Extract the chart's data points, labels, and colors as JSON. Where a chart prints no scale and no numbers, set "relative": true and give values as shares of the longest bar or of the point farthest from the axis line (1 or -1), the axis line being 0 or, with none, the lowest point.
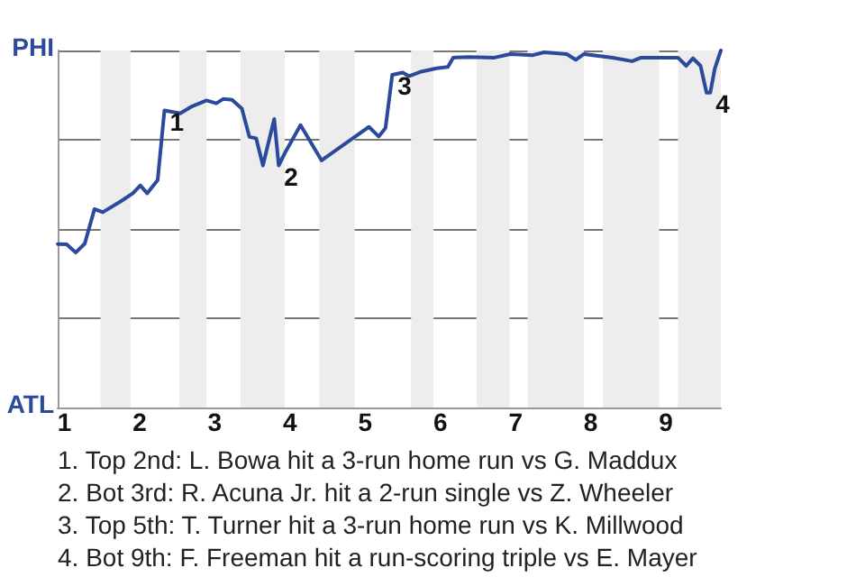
{
  "chart_data": {
    "type": "line",
    "relative": true,
    "x": [
      0.91,
      1.03,
      1.15,
      1.27,
      1.4,
      1.51,
      1.76,
      1.91,
      2.01,
      2.1,
      2.24,
      2.33,
      2.54,
      2.7,
      2.89,
      3.02,
      3.11,
      3.23,
      3.36,
      3.46,
      3.55,
      3.64,
      3.79,
      3.85,
      3.94,
      4.14,
      4.42,
      4.78,
      5.05,
      5.18,
      5.27,
      5.36,
      5.5,
      5.58,
      5.73,
      5.95,
      6.1,
      6.17,
      6.38,
      6.72,
      6.93,
      7.23,
      7.38,
      7.68,
      7.8,
      7.91,
      8.29,
      8.55,
      8.67,
      8.97,
      9.16,
      9.27,
      9.36,
      9.46,
      9.54,
      9.59,
      9.65,
      9.73
    ],
    "series": [
      {
        "color": "#2b4a9c",
        "values": [
          0.458,
          0.457,
          0.434,
          0.459,
          0.556,
          0.547,
          0.579,
          0.6,
          0.622,
          0.6,
          0.637,
          0.832,
          0.824,
          0.844,
          0.86,
          0.852,
          0.864,
          0.862,
          0.837,
          0.758,
          0.754,
          0.678,
          0.808,
          0.678,
          0.716,
          0.791,
          0.692,
          0.746,
          0.786,
          0.759,
          0.783,
          0.932,
          0.938,
          0.928,
          0.94,
          0.95,
          0.954,
          0.98,
          0.982,
          0.98,
          0.99,
          0.987,
          0.995,
          0.99,
          0.974,
          0.99,
          0.98,
          0.97,
          0.98,
          0.98,
          0.98,
          0.957,
          0.978,
          0.957,
          0.882,
          0.882,
          0.949,
          1
        ]
      }
    ],
    "xlim": [
      0.91,
      9.73
    ],
    "xticks": [
      1,
      2,
      3,
      4,
      5,
      6,
      7,
      8,
      9
    ],
    "grid": "y",
    "marker": "none",
    "line_style": "solid",
    "bands": [
      {
        "axis": "x",
        "from": 1.48,
        "to": 1.88,
        "color": "#ededed"
      },
      {
        "axis": "x",
        "from": 2.53,
        "to": 2.89,
        "color": "#ededed"
      },
      {
        "axis": "x",
        "from": 3.34,
        "to": 3.93,
        "color": "#ededed"
      },
      {
        "axis": "x",
        "from": 4.39,
        "to": 4.86,
        "color": "#ededed"
      },
      {
        "axis": "x",
        "from": 5.61,
        "to": 5.91,
        "color": "#ededed"
      },
      {
        "axis": "x",
        "from": 6.48,
        "to": 6.92,
        "color": "#ededed"
      },
      {
        "axis": "x",
        "from": 7.16,
        "to": 7.91,
        "color": "#ededed"
      },
      {
        "axis": "x",
        "from": 8.16,
        "to": 8.91,
        "color": "#ededed"
      },
      {
        "axis": "x",
        "from": 9.16,
        "to": 9.73,
        "color": "#ededed"
      }
    ],
    "annotations": [
      "PHI",
      "ATL",
      {
        "text": "1",
        "x": 2.33,
        "y": 0.832
      },
      {
        "text": "2",
        "x": 3.85,
        "y": 0.678
      },
      {
        "text": "3",
        "x": 5.36,
        "y": 0.932
      },
      {
        "text": "4",
        "x": 9.59,
        "y": 0.882
      },
      "1. Top 2nd: L. Bowa hit a 3-run home run vs G. Maddux",
      "2. Bot 3rd: R. Acuna Jr. hit a 2-run single vs Z. Wheeler",
      "3. Top 5th: T. Turner hit a 3-run home run vs K. Millwood",
      "4. Bot 9th: F. Freeman hit a run-scoring triple vs E. Mayer"
    ]
  }
}
